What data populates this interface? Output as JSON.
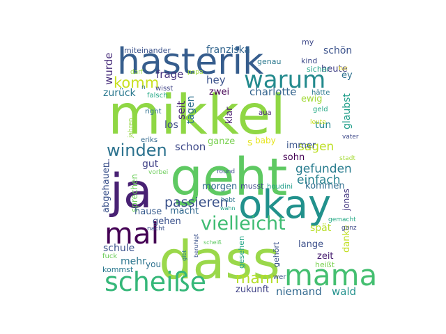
{
  "words": [
    {
      "text": "mikkel",
      "color": "#8fd744"
    },
    {
      "text": "dass",
      "color": "#9ad84a"
    },
    {
      "text": "geht",
      "color": "#5ec962"
    },
    {
      "text": "hasterik",
      "color": "#365d8d"
    },
    {
      "text": "ja",
      "color": "#482173"
    },
    {
      "text": "okay",
      "color": "#21918c"
    },
    {
      "text": "mama",
      "color": "#44bf70"
    },
    {
      "text": "mal",
      "color": "#440154"
    },
    {
      "text": "scheiße",
      "color": "#35b779"
    },
    {
      "text": "warum",
      "color": "#238a8d"
    },
    {
      "text": "vielleicht",
      "color": "#3fbc73"
    },
    {
      "text": "komm",
      "color": "#c8e020"
    },
    {
      "text": "winden",
      "color": "#2c728e"
    },
    {
      "text": "mann",
      "color": "#b5de2b"
    },
    {
      "text": "passieren",
      "color": "#3b528b"
    },
    {
      "text": "gefunden",
      "color": "#287c8e"
    },
    {
      "text": "einfach",
      "color": "#26828e"
    },
    {
      "text": "sagen",
      "color": "#bddf26"
    },
    {
      "text": "zukunft",
      "color": "#414487"
    },
    {
      "text": "niemand",
      "color": "#31688e"
    },
    {
      "text": "wald",
      "color": "#21918c"
    },
    {
      "text": "charlotte",
      "color": "#33638d"
    },
    {
      "text": "frage",
      "color": "#46327e"
    },
    {
      "text": "hey",
      "color": "#3b528b"
    },
    {
      "text": "zurück",
      "color": "#2a788e"
    },
    {
      "text": "zwei",
      "color": "#440154"
    },
    {
      "text": "wurde",
      "color": "#472c7a"
    },
    {
      "text": "seit",
      "color": "#482475"
    },
    {
      "text": "tagen",
      "color": "#2d708e"
    },
    {
      "text": "klar",
      "color": "#481c6e"
    },
    {
      "text": "los",
      "color": "#3e4a89"
    },
    {
      "text": "schon",
      "color": "#3e4989"
    },
    {
      "text": "ganze",
      "color": "#7ad151"
    },
    {
      "text": "baby",
      "color": "#e5e419"
    },
    {
      "text": "immer",
      "color": "#3a548c"
    },
    {
      "text": "sohn",
      "color": "#440154"
    },
    {
      "text": "tun",
      "color": "#24878e"
    },
    {
      "text": "glaubst",
      "color": "#1f9e89"
    },
    {
      "text": "ewig",
      "color": "#a2da37"
    },
    {
      "text": "gut",
      "color": "#414287"
    },
    {
      "text": "i",
      "color": "#3e4a89"
    },
    {
      "text": "abgehauen",
      "color": "#3b528b"
    },
    {
      "text": "sprechen",
      "color": "#6ccd5a"
    },
    {
      "text": "morgen",
      "color": "#31688e"
    },
    {
      "text": "musst",
      "color": "#3e4989"
    },
    {
      "text": "kommen",
      "color": "#2e6e8e"
    },
    {
      "text": "jonas",
      "color": "#453781"
    },
    {
      "text": "hause",
      "color": "#375b8d"
    },
    {
      "text": "macht",
      "color": "#31688e"
    },
    {
      "text": "gehen",
      "color": "#3b528b"
    },
    {
      "text": "spät",
      "color": "#b8de29"
    },
    {
      "text": "danke",
      "color": "#c2df23"
    },
    {
      "text": "schule",
      "color": "#3b528b"
    },
    {
      "text": "lange",
      "color": "#3c4f8a"
    },
    {
      "text": "mehr",
      "color": "#2b758e"
    },
    {
      "text": "you",
      "color": "#2d708e"
    },
    {
      "text": "kommst",
      "color": "#2a788e"
    },
    {
      "text": "zeit",
      "color": "#482071"
    },
    {
      "text": "heißt",
      "color": "#7ad151"
    },
    {
      "text": "gesehen",
      "color": "#21a685"
    },
    {
      "text": "gehört",
      "color": "#3b528b"
    },
    {
      "text": "franziska",
      "color": "#32658e"
    },
    {
      "text": "schön",
      "color": "#3b528b"
    },
    {
      "text": "heute",
      "color": "#424186"
    },
    {
      "text": "my",
      "color": "#3e4989"
    },
    {
      "text": "kind",
      "color": "#3e4a89"
    },
    {
      "text": "genau",
      "color": "#2a788e"
    },
    {
      "text": "sicher",
      "color": "#20a386"
    },
    {
      "text": "tut",
      "color": "#fde725"
    },
    {
      "text": "ey",
      "color": "#2d708e"
    },
    {
      "text": "miteinander",
      "color": "#3b528b"
    },
    {
      "text": "darf",
      "color": "#9ad84a"
    },
    {
      "text": "papa",
      "color": "#a0da39"
    },
    {
      "text": "wisst",
      "color": "#414487"
    },
    {
      "text": "n",
      "color": "#2c728e"
    },
    {
      "text": "falsch",
      "color": "#22a884"
    },
    {
      "text": "right",
      "color": "#2d708e"
    },
    {
      "text": "hätte",
      "color": "#2a788e"
    },
    {
      "text": "geld",
      "color": "#22a884"
    },
    {
      "text": "aua",
      "color": "#482576"
    },
    {
      "text": "leute",
      "color": "#c8e020"
    },
    {
      "text": "jahren",
      "color": "#9ad84a"
    },
    {
      "text": "eriks",
      "color": "#31688e"
    },
    {
      "text": "vorbei",
      "color": "#6ccd5a"
    },
    {
      "text": "round",
      "color": "#3b528b"
    },
    {
      "text": "houdini",
      "color": "#1f9e89"
    },
    {
      "text": "vater",
      "color": "#3e4989"
    },
    {
      "text": "stadt",
      "color": "#a5db36"
    },
    {
      "text": "habt",
      "color": "#2c728e"
    },
    {
      "text": "wahn",
      "color": "#1fa287"
    },
    {
      "text": "nacht",
      "color": "#3b528b"
    },
    {
      "text": "gemacht",
      "color": "#22a884"
    },
    {
      "text": "ganz",
      "color": "#3e4989"
    },
    {
      "text": "fuck",
      "color": "#6ccd5a"
    },
    {
      "text": "gibt",
      "color": "#287c8e"
    },
    {
      "text": "beruhigt",
      "color": "#3b528b"
    },
    {
      "text": "scheiß",
      "color": "#5ec962"
    },
    {
      "text": "wer",
      "color": "#3b528b"
    }
  ]
}
